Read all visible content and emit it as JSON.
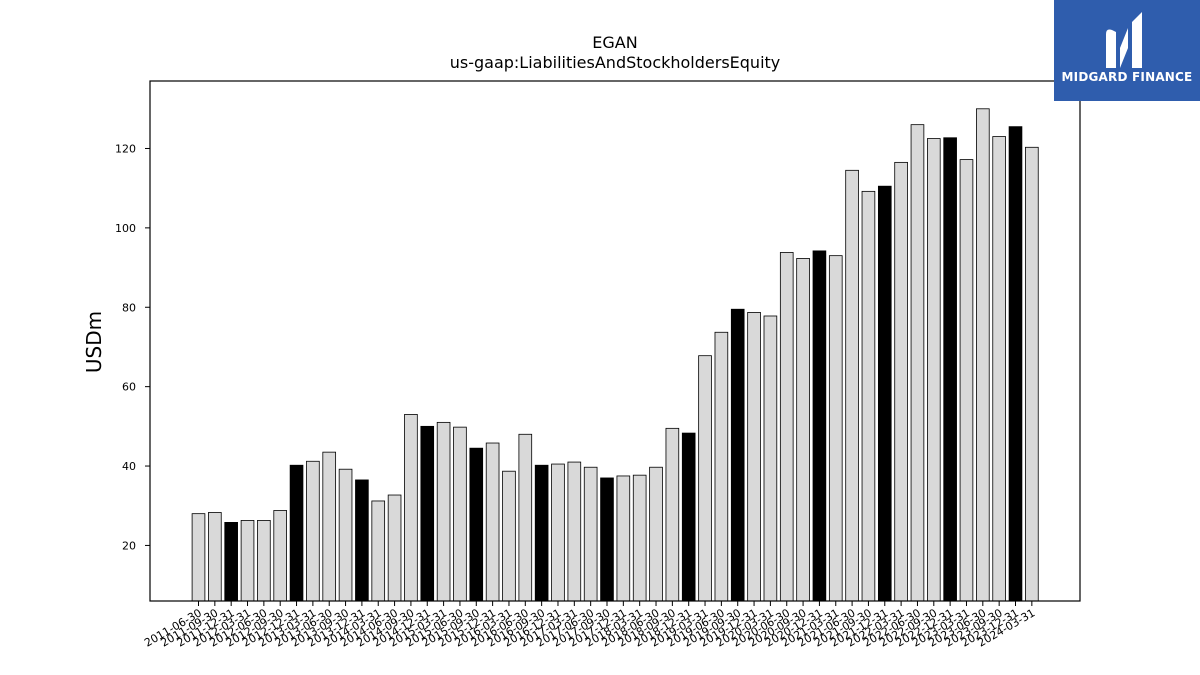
{
  "chart_data": {
    "type": "bar",
    "title": "EGAN",
    "subtitle": "us-gaap:LiabilitiesAndStockholdersEquity",
    "xlabel": "",
    "ylabel": "USDm",
    "ylim": [
      6,
      137
    ],
    "yticks": [
      20,
      40,
      60,
      80,
      100,
      120
    ],
    "grid": false,
    "colors": {
      "regular": "#d9d9d9",
      "highlight": "#000000",
      "edge": "#000000"
    },
    "categories": [
      "2011-06-30",
      "2011-09-30",
      "2011-12-31",
      "2012-03-31",
      "2012-06-30",
      "2012-09-30",
      "2012-12-31",
      "2013-03-31",
      "2013-06-30",
      "2013-09-30",
      "2013-12-31",
      "2014-03-31",
      "2014-06-30",
      "2014-09-30",
      "2014-12-31",
      "2015-03-31",
      "2015-06-30",
      "2015-09-30",
      "2015-12-31",
      "2016-03-31",
      "2016-06-30",
      "2016-09-30",
      "2016-12-31",
      "2017-03-31",
      "2017-06-30",
      "2017-09-30",
      "2017-12-31",
      "2018-03-31",
      "2018-06-30",
      "2018-09-30",
      "2018-12-31",
      "2019-03-31",
      "2019-06-30",
      "2019-09-30",
      "2019-12-31",
      "2020-03-31",
      "2020-06-30",
      "2020-09-30",
      "2020-12-31",
      "2021-03-31",
      "2021-06-30",
      "2021-09-30",
      "2021-12-31",
      "2022-03-31",
      "2022-06-30",
      "2022-09-30",
      "2022-12-31",
      "2023-03-31",
      "2023-06-30",
      "2023-09-30",
      "2023-12-31",
      "2024-03-31"
    ],
    "values": [
      28.0,
      28.3,
      25.8,
      26.3,
      26.3,
      28.8,
      40.2,
      41.2,
      43.5,
      39.2,
      36.5,
      31.2,
      32.7,
      53.0,
      50.0,
      51.0,
      49.8,
      44.5,
      45.8,
      38.7,
      48.0,
      40.2,
      40.5,
      41.0,
      39.7,
      37.0,
      37.5,
      37.7,
      39.7,
      49.5,
      48.3,
      67.8,
      73.7,
      79.5,
      78.7,
      77.8,
      93.8,
      92.3,
      94.2,
      93.0,
      114.5,
      109.2,
      110.5,
      116.5,
      126.0,
      122.5,
      122.7,
      117.2,
      130.0,
      123.0,
      125.5,
      120.3
    ],
    "highlight": [
      false,
      false,
      true,
      false,
      false,
      false,
      true,
      false,
      false,
      false,
      true,
      false,
      false,
      false,
      true,
      false,
      false,
      true,
      false,
      false,
      false,
      true,
      false,
      false,
      false,
      true,
      false,
      false,
      false,
      false,
      true,
      false,
      false,
      true,
      false,
      false,
      false,
      false,
      true,
      false,
      false,
      false,
      true,
      false,
      false,
      false,
      true,
      false,
      false,
      false,
      true,
      false
    ]
  },
  "logo": {
    "text": "MIDGARD FINANCE"
  }
}
